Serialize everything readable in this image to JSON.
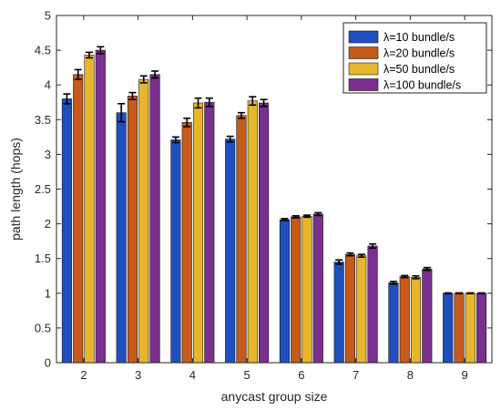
{
  "chart_data": {
    "type": "bar",
    "xlabel": "anycast group size",
    "ylabel": "path length (hops)",
    "categories": [
      "2",
      "3",
      "4",
      "5",
      "6",
      "7",
      "8",
      "9"
    ],
    "ylim": [
      0,
      5
    ],
    "yticks": [
      "0",
      "0.5",
      "1",
      "1.5",
      "2",
      "2.5",
      "3",
      "3.5",
      "4",
      "4.5",
      "5"
    ],
    "legend_position": "top-right",
    "error_bars": true,
    "series": [
      {
        "name": "λ=10 bundle/s",
        "color": "#1f4fbf",
        "values": [
          3.8,
          3.6,
          3.21,
          3.22,
          2.06,
          1.45,
          1.15,
          1.0
        ],
        "errors": [
          0.07,
          0.13,
          0.04,
          0.04,
          0.015,
          0.03,
          0.02,
          0.005
        ]
      },
      {
        "name": "λ=20 bundle/s",
        "color": "#c55a1c",
        "values": [
          4.15,
          3.84,
          3.46,
          3.56,
          2.1,
          1.56,
          1.24,
          1.0
        ],
        "errors": [
          0.07,
          0.05,
          0.06,
          0.04,
          0.015,
          0.02,
          0.015,
          0.005
        ]
      },
      {
        "name": "λ=50 bundle/s",
        "color": "#e8b62a",
        "values": [
          4.43,
          4.08,
          3.74,
          3.77,
          2.11,
          1.54,
          1.23,
          1.0
        ],
        "errors": [
          0.04,
          0.05,
          0.07,
          0.06,
          0.015,
          0.02,
          0.02,
          0.005
        ]
      },
      {
        "name": "λ=100 bundle/s",
        "color": "#7b2f8e",
        "values": [
          4.5,
          4.15,
          3.75,
          3.74,
          2.14,
          1.68,
          1.35,
          1.0
        ],
        "errors": [
          0.05,
          0.05,
          0.06,
          0.05,
          0.02,
          0.03,
          0.02,
          0.005
        ]
      }
    ]
  }
}
